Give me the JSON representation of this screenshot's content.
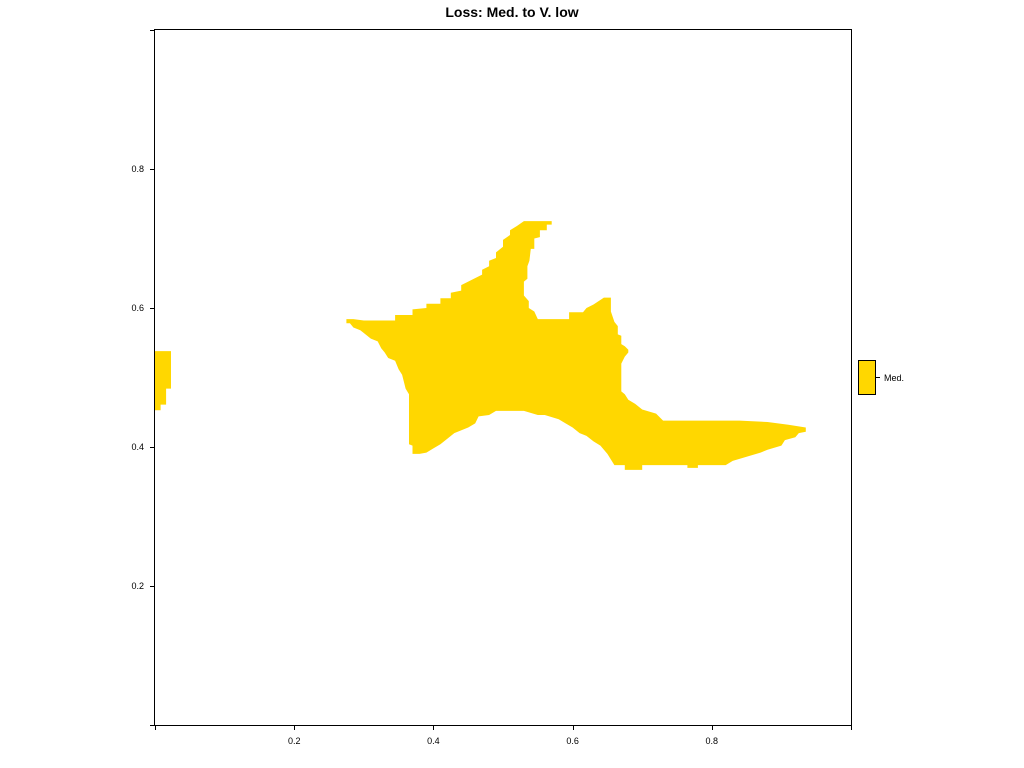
{
  "chart_data": {
    "type": "heatmap",
    "title": "Loss: Med. to V. low",
    "xlabel": "",
    "ylabel": "",
    "xlim": [
      0,
      1
    ],
    "ylim": [
      0,
      1
    ],
    "x_ticks": [
      0.2,
      0.4,
      0.6,
      0.8
    ],
    "y_ticks": [
      0.2,
      0.4,
      0.6,
      0.8
    ],
    "x_tick_labels": [
      "0.2",
      "0.4",
      "0.6",
      "0.8"
    ],
    "y_tick_labels": [
      "0.2",
      "0.4",
      "0.6",
      "0.8"
    ],
    "grid": false,
    "legend": {
      "position": "right",
      "entries": [
        {
          "label": "Med.",
          "color": "#FFD700"
        }
      ]
    },
    "regions": [
      {
        "class": "Med.",
        "color": "#FFD700",
        "polygon": [
          [
            0.0,
            0.538
          ],
          [
            0.023,
            0.538
          ],
          [
            0.023,
            0.484
          ],
          [
            0.016,
            0.484
          ],
          [
            0.016,
            0.461
          ],
          [
            0.008,
            0.461
          ],
          [
            0.008,
            0.453
          ],
          [
            0.0,
            0.453
          ]
        ]
      },
      {
        "class": "Med.",
        "color": "#FFD700",
        "polygon": [
          [
            0.275,
            0.584
          ],
          [
            0.285,
            0.584
          ],
          [
            0.3,
            0.582
          ],
          [
            0.345,
            0.582
          ],
          [
            0.345,
            0.59
          ],
          [
            0.37,
            0.59
          ],
          [
            0.37,
            0.598
          ],
          [
            0.39,
            0.6
          ],
          [
            0.39,
            0.606
          ],
          [
            0.41,
            0.606
          ],
          [
            0.41,
            0.614
          ],
          [
            0.425,
            0.614
          ],
          [
            0.425,
            0.622
          ],
          [
            0.44,
            0.625
          ],
          [
            0.44,
            0.633
          ],
          [
            0.45,
            0.638
          ],
          [
            0.47,
            0.648
          ],
          [
            0.47,
            0.655
          ],
          [
            0.48,
            0.66
          ],
          [
            0.48,
            0.668
          ],
          [
            0.49,
            0.672
          ],
          [
            0.49,
            0.68
          ],
          [
            0.5,
            0.688
          ],
          [
            0.5,
            0.698
          ],
          [
            0.51,
            0.705
          ],
          [
            0.51,
            0.712
          ],
          [
            0.52,
            0.718
          ],
          [
            0.53,
            0.725
          ],
          [
            0.57,
            0.725
          ],
          [
            0.57,
            0.72
          ],
          [
            0.563,
            0.72
          ],
          [
            0.563,
            0.712
          ],
          [
            0.553,
            0.712
          ],
          [
            0.553,
            0.702
          ],
          [
            0.545,
            0.7
          ],
          [
            0.545,
            0.685
          ],
          [
            0.54,
            0.685
          ],
          [
            0.538,
            0.668
          ],
          [
            0.535,
            0.66
          ],
          [
            0.535,
            0.642
          ],
          [
            0.53,
            0.638
          ],
          [
            0.53,
            0.618
          ],
          [
            0.537,
            0.61
          ],
          [
            0.537,
            0.6
          ],
          [
            0.545,
            0.595
          ],
          [
            0.55,
            0.584
          ],
          [
            0.595,
            0.584
          ],
          [
            0.595,
            0.594
          ],
          [
            0.615,
            0.594
          ],
          [
            0.62,
            0.6
          ],
          [
            0.63,
            0.605
          ],
          [
            0.645,
            0.615
          ],
          [
            0.655,
            0.615
          ],
          [
            0.655,
            0.595
          ],
          [
            0.66,
            0.58
          ],
          [
            0.665,
            0.574
          ],
          [
            0.665,
            0.562
          ],
          [
            0.67,
            0.56
          ],
          [
            0.67,
            0.548
          ],
          [
            0.675,
            0.545
          ],
          [
            0.68,
            0.54
          ],
          [
            0.68,
            0.536
          ],
          [
            0.675,
            0.53
          ],
          [
            0.67,
            0.52
          ],
          [
            0.67,
            0.48
          ],
          [
            0.675,
            0.476
          ],
          [
            0.68,
            0.468
          ],
          [
            0.69,
            0.462
          ],
          [
            0.7,
            0.454
          ],
          [
            0.72,
            0.448
          ],
          [
            0.73,
            0.438
          ],
          [
            0.84,
            0.438
          ],
          [
            0.88,
            0.436
          ],
          [
            0.91,
            0.432
          ],
          [
            0.935,
            0.428
          ],
          [
            0.935,
            0.422
          ],
          [
            0.925,
            0.42
          ],
          [
            0.92,
            0.414
          ],
          [
            0.905,
            0.41
          ],
          [
            0.9,
            0.402
          ],
          [
            0.88,
            0.396
          ],
          [
            0.87,
            0.392
          ],
          [
            0.85,
            0.386
          ],
          [
            0.83,
            0.38
          ],
          [
            0.82,
            0.374
          ],
          [
            0.78,
            0.374
          ],
          [
            0.78,
            0.37
          ],
          [
            0.765,
            0.37
          ],
          [
            0.765,
            0.374
          ],
          [
            0.7,
            0.374
          ],
          [
            0.7,
            0.367
          ],
          [
            0.675,
            0.367
          ],
          [
            0.675,
            0.374
          ],
          [
            0.66,
            0.374
          ],
          [
            0.655,
            0.382
          ],
          [
            0.65,
            0.39
          ],
          [
            0.645,
            0.396
          ],
          [
            0.64,
            0.402
          ],
          [
            0.63,
            0.408
          ],
          [
            0.62,
            0.416
          ],
          [
            0.61,
            0.42
          ],
          [
            0.6,
            0.428
          ],
          [
            0.59,
            0.434
          ],
          [
            0.58,
            0.44
          ],
          [
            0.56,
            0.446
          ],
          [
            0.55,
            0.446
          ],
          [
            0.53,
            0.452
          ],
          [
            0.49,
            0.452
          ],
          [
            0.48,
            0.446
          ],
          [
            0.465,
            0.444
          ],
          [
            0.46,
            0.434
          ],
          [
            0.45,
            0.428
          ],
          [
            0.43,
            0.42
          ],
          [
            0.42,
            0.412
          ],
          [
            0.41,
            0.404
          ],
          [
            0.4,
            0.398
          ],
          [
            0.39,
            0.392
          ],
          [
            0.38,
            0.39
          ],
          [
            0.37,
            0.39
          ],
          [
            0.37,
            0.402
          ],
          [
            0.365,
            0.404
          ],
          [
            0.365,
            0.476
          ],
          [
            0.36,
            0.484
          ],
          [
            0.355,
            0.504
          ],
          [
            0.35,
            0.512
          ],
          [
            0.345,
            0.524
          ],
          [
            0.335,
            0.528
          ],
          [
            0.33,
            0.536
          ],
          [
            0.325,
            0.542
          ],
          [
            0.32,
            0.552
          ],
          [
            0.31,
            0.556
          ],
          [
            0.3,
            0.564
          ],
          [
            0.295,
            0.568
          ],
          [
            0.285,
            0.572
          ],
          [
            0.28,
            0.578
          ],
          [
            0.275,
            0.578
          ]
        ]
      }
    ]
  }
}
